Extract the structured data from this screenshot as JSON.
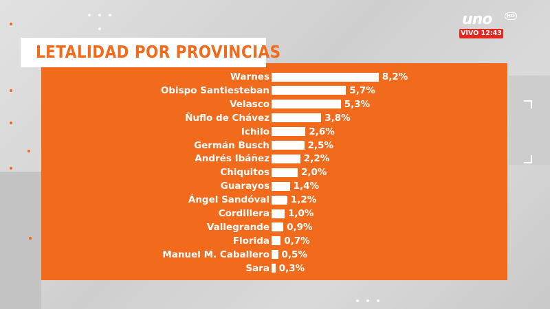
{
  "channel": {
    "logo_text": "uno",
    "hd_badge": "HD",
    "live_label": "VIVO 12:43"
  },
  "colors": {
    "panel": "#f26a1b",
    "bar": "#ffffff",
    "title_text": "#f26a1b",
    "live_badge": "#e3291f"
  },
  "chart_data": {
    "type": "bar",
    "orientation": "horizontal",
    "title": "LETALIDAD POR PROVINCIAS",
    "categories": [
      "Warnes",
      "Obispo Santiesteban",
      "Velasco",
      "Ñuflo de Chávez",
      "Ichilo",
      "Germán Busch",
      "Andrés Ibáñez",
      "Chiquitos",
      "Guarayos",
      "Ángel Sandóval",
      "Cordillera",
      "Vallegrande",
      "Florida",
      "Manuel M. Caballero",
      "Sara"
    ],
    "values": [
      8.2,
      5.7,
      5.3,
      3.8,
      2.6,
      2.5,
      2.2,
      2.0,
      1.4,
      1.2,
      1.0,
      0.9,
      0.7,
      0.5,
      0.3
    ],
    "value_labels": [
      "8,2%",
      "5,7%",
      "5,3%",
      "3,8%",
      "2,6%",
      "2,5%",
      "2,2%",
      "2,0%",
      "1,4%",
      "1,2%",
      "1,0%",
      "0,9%",
      "0,7%",
      "0,5%",
      "0,3%"
    ],
    "unit": "%",
    "grid": false,
    "legend": "none"
  }
}
